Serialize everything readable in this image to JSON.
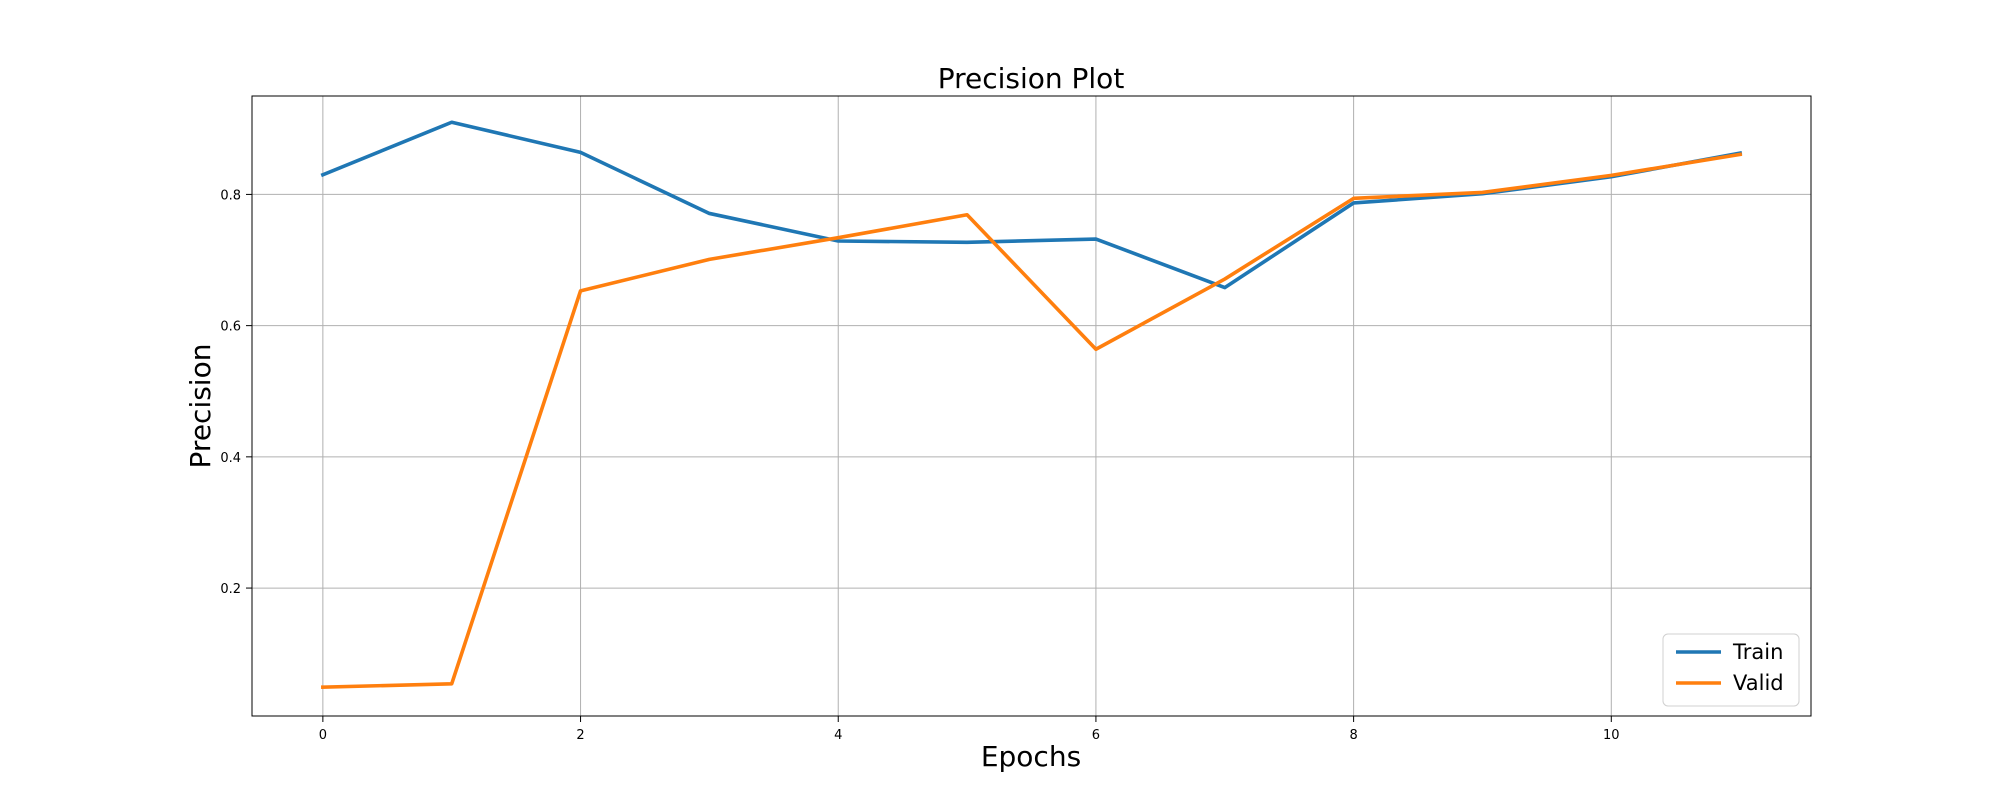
{
  "chart_data": {
    "type": "line",
    "title": "Precision Plot",
    "xlabel": "Epochs",
    "ylabel": "Precision",
    "x": [
      0,
      1,
      2,
      3,
      4,
      5,
      6,
      7,
      8,
      9,
      10,
      11
    ],
    "xlim": [
      -0.55,
      11.55
    ],
    "ylim": [
      0.005,
      0.95
    ],
    "xticks": [
      0,
      2,
      4,
      6,
      8,
      10
    ],
    "yticks": [
      0.2,
      0.4,
      0.6,
      0.8
    ],
    "xtick_labels": [
      "0",
      "2",
      "4",
      "6",
      "8",
      "10"
    ],
    "ytick_labels": [
      "0.2",
      "0.4",
      "0.6",
      "0.8"
    ],
    "grid": true,
    "legend_position": "lower-right",
    "series": [
      {
        "name": "Train",
        "color": "#1f77b4",
        "values": [
          0.83,
          0.91,
          0.864,
          0.771,
          0.729,
          0.727,
          0.732,
          0.658,
          0.787,
          0.801,
          0.827,
          0.863
        ]
      },
      {
        "name": "Valid",
        "color": "#ff7f0e",
        "values": [
          0.049,
          0.054,
          0.653,
          0.701,
          0.734,
          0.769,
          0.564,
          0.671,
          0.794,
          0.803,
          0.829,
          0.861
        ]
      }
    ]
  }
}
